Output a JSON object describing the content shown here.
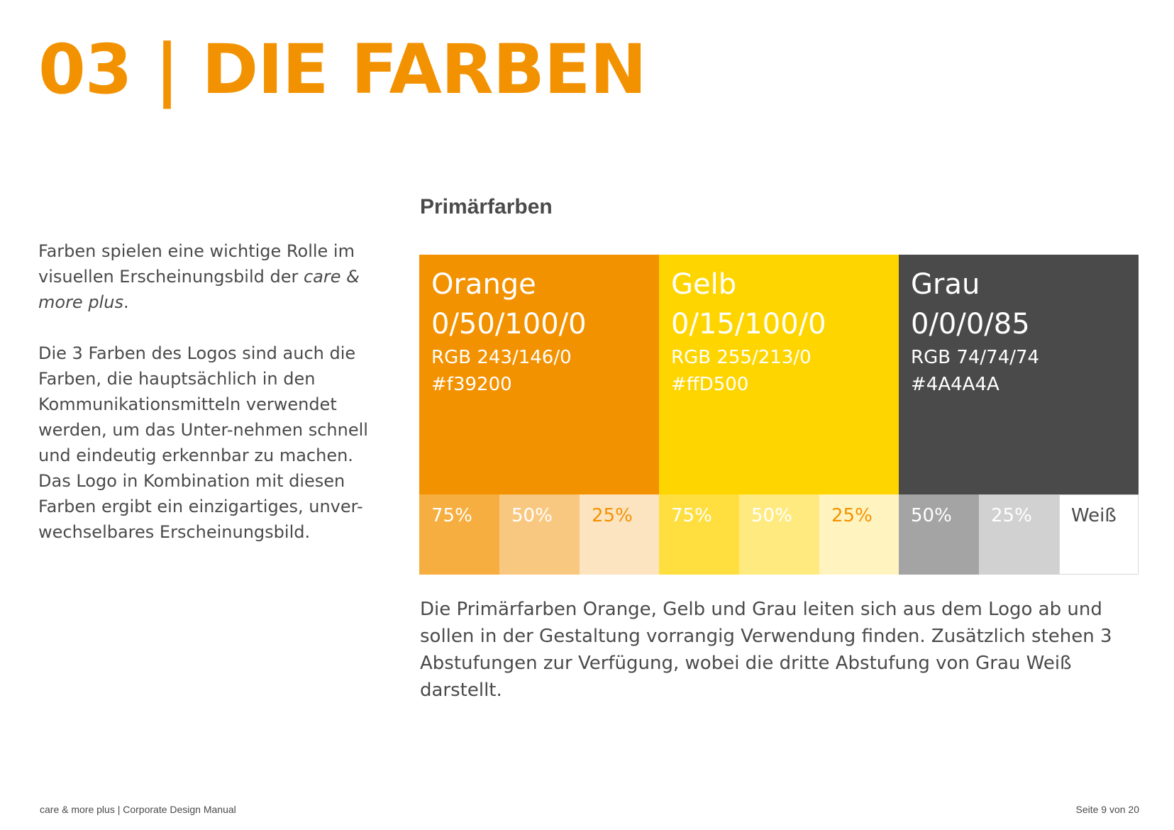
{
  "title": "03 | DIE FARBEN",
  "intro": {
    "p1_before": "Farben spielen eine wichtige Rolle im visuellen Erscheinungsbild der ",
    "p1_brand": "care & more plus",
    "p1_after": ".",
    "p2": "Die 3 Farben des Logos sind auch die Farben, die hauptsächlich in den Kommunikationsmitteln verwendet werden, um das Unter-nehmen schnell und eindeutig erkennbar zu machen. Das Logo in Kombination mit diesen Farben ergibt ein einzigartiges, unver-wechselbares Erscheinungsbild."
  },
  "section_heading": "Primärfarben",
  "swatches": [
    {
      "name": "Orange",
      "cmyk": "0/50/100/0",
      "rgb": "RGB 243/146/0",
      "hex": "#f39200",
      "color": "#f39200",
      "text_color": "#ffffff"
    },
    {
      "name": "Gelb",
      "cmyk": "0/15/100/0",
      "rgb": "RGB 255/213/0",
      "hex": "#ffD500",
      "color": "#ffd500",
      "text_color": "#ffffff"
    },
    {
      "name": "Grau",
      "cmyk": "0/0/0/85",
      "rgb": "RGB 74/74/74",
      "hex": "#4A4A4A",
      "color": "#4a4a4a",
      "text_color": "#ffffff"
    }
  ],
  "tints": [
    {
      "label": "75%",
      "color": "#f6ae40",
      "text_color": "#ffffff"
    },
    {
      "label": "50%",
      "color": "#f9c880",
      "text_color": "#ffffff"
    },
    {
      "label": "25%",
      "color": "#fce4c0",
      "text_color": "#f39200"
    },
    {
      "label": "75%",
      "color": "#ffdf40",
      "text_color": "#ffffff"
    },
    {
      "label": "50%",
      "color": "#ffea80",
      "text_color": "#ffffff"
    },
    {
      "label": "25%",
      "color": "#fff4c0",
      "text_color": "#f39200"
    },
    {
      "label": "50%",
      "color": "#a4a4a4",
      "text_color": "#ffffff"
    },
    {
      "label": "25%",
      "color": "#d1d1d1",
      "text_color": "#ffffff"
    },
    {
      "label": "Weiß",
      "color": "#ffffff",
      "text_color": "#4a4a4a"
    }
  ],
  "closing_text": "Die Primärfarben Orange, Gelb und Grau leiten sich aus dem Logo ab und sollen in der Gestaltung vorrangig Verwendung finden. Zusätzlich stehen 3 Abstufungen zur Verfügung, wobei die dritte Abstufung von Grau Weiß darstellt.",
  "footer": {
    "left": "care & more plus | Corporate Design Manual",
    "right": "Seite 9 von 20"
  }
}
